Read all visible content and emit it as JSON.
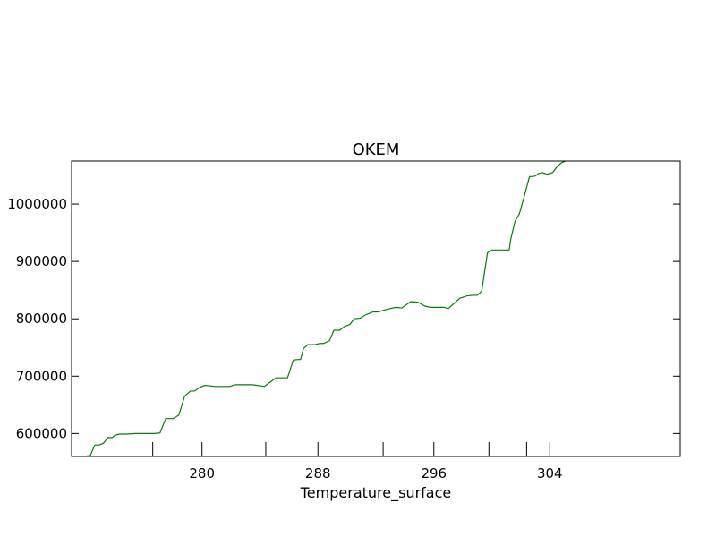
{
  "chart_data": {
    "type": "line",
    "title": "OKEM",
    "xlabel": "Temperature_surface",
    "ylabel": "",
    "xlim": [
      271.0,
      313.0
    ],
    "ylim": [
      560000,
      1075000
    ],
    "x_ticks": [
      280,
      288,
      296,
      304
    ],
    "y_ticks": [
      600000,
      700000,
      800000,
      900000,
      1000000
    ],
    "x_tick_labels": [
      "280",
      "288",
      "296",
      "304"
    ],
    "y_tick_labels": [
      "600000",
      "700000",
      "800000",
      "900000",
      "1000000"
    ],
    "extra_x_tick_marks": [
      276.6,
      284.4,
      292.5,
      299.8,
      302.4
    ],
    "grid": false,
    "legend": "none",
    "series": [
      {
        "color": "#008000",
        "x": [
          271.5,
          271.9,
          272.3,
          272.6,
          272.9,
          273.2,
          273.5,
          273.8,
          274.0,
          274.3,
          274.8,
          275.4,
          276.1,
          276.7,
          277.1,
          277.5,
          278.0,
          278.4,
          278.8,
          279.2,
          279.5,
          279.8,
          280.2,
          280.6,
          280.9,
          281.2,
          281.6,
          281.9,
          282.3,
          282.6,
          283.0,
          283.5,
          284.3,
          285.1,
          285.9,
          286.3,
          286.6,
          286.8,
          287.0,
          287.3,
          287.6,
          287.8,
          288.1,
          288.4,
          288.8,
          289.1,
          289.5,
          289.8,
          290.2,
          290.5,
          290.9,
          291.3,
          291.8,
          292.2,
          292.4,
          292.7,
          293.0,
          293.4,
          293.8,
          294.4,
          294.9,
          295.4,
          295.8,
          296.0,
          296.4,
          296.7,
          297.0,
          297.8,
          298.3,
          298.7,
          299.0,
          299.3,
          299.7,
          300.0,
          300.4,
          300.8,
          301.2,
          301.3,
          301.6,
          301.9,
          302.2,
          302.6,
          302.8,
          303.0,
          303.2,
          303.5,
          303.8,
          304.2,
          304.5,
          304.8,
          305.1,
          305.4,
          305.7,
          305.9,
          306.3
        ],
        "y": [
          560000,
          560000,
          562000,
          580000,
          580000,
          583000,
          593000,
          593000,
          597000,
          599000,
          599000,
          600000,
          600000,
          600000,
          601000,
          626000,
          626000,
          632000,
          665000,
          674000,
          674000,
          680000,
          684000,
          683000,
          682000,
          682000,
          682000,
          682000,
          685000,
          685000,
          685000,
          685000,
          682000,
          697000,
          697000,
          728000,
          729000,
          729000,
          748000,
          755000,
          755000,
          755000,
          757000,
          757000,
          762000,
          780000,
          780000,
          786000,
          790000,
          800000,
          801000,
          807000,
          812000,
          812000,
          814000,
          816000,
          818000,
          820000,
          819000,
          830000,
          829000,
          822000,
          820000,
          820000,
          820000,
          820000,
          818000,
          836000,
          840000,
          841000,
          841000,
          848000,
          915000,
          920000,
          920000,
          920000,
          920000,
          938000,
          970000,
          983000,
          1010000,
          1048000,
          1048000,
          1049000,
          1053000,
          1055000,
          1052000,
          1055000,
          1065000,
          1072000,
          1075000,
          1082000,
          1090000,
          1100000,
          1120000
        ]
      }
    ]
  }
}
